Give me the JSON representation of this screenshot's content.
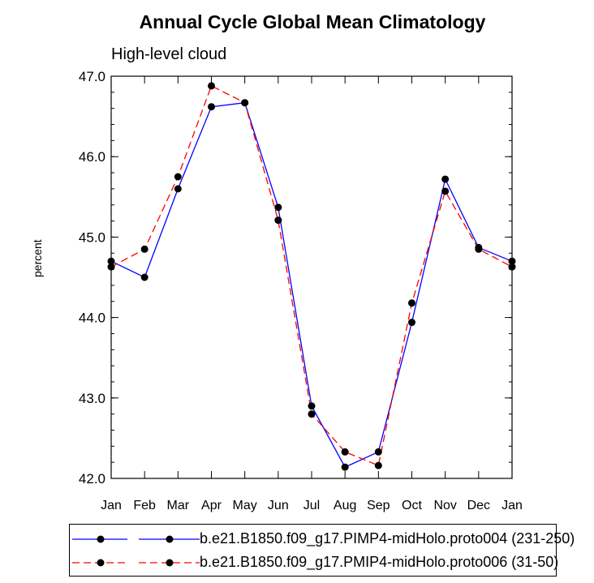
{
  "chart_data": {
    "type": "line",
    "title": "Annual Cycle Global Mean Climatology",
    "subtitle": "High-level cloud",
    "xlabel": "",
    "ylabel": "percent",
    "categories": [
      "Jan",
      "Feb",
      "Mar",
      "Apr",
      "May",
      "Jun",
      "Jul",
      "Aug",
      "Sep",
      "Oct",
      "Nov",
      "Dec",
      "Jan"
    ],
    "ylim": [
      42.0,
      47.0
    ],
    "yticks": [
      "42.0",
      "43.0",
      "44.0",
      "45.0",
      "46.0",
      "47.0"
    ],
    "grid": false,
    "legend_position": "bottom",
    "series": [
      {
        "name": "b.e21.B1850.f09_g17.PIMP4-midHolo.proto004 (231-250)",
        "color": "#0000ff",
        "dash": "solid",
        "values": [
          44.7,
          44.5,
          45.6,
          46.62,
          46.67,
          45.37,
          42.9,
          42.14,
          42.33,
          43.94,
          45.72,
          44.87,
          44.7
        ]
      },
      {
        "name": "b.e21.B1850.f09_g17.PMIP4-midHolo.proto006 (31-50)",
        "color": "#ff0000",
        "dash": "dashed",
        "values": [
          44.63,
          44.85,
          45.75,
          46.88,
          46.67,
          45.21,
          42.8,
          42.33,
          42.16,
          44.18,
          45.57,
          44.85,
          44.63
        ]
      }
    ]
  }
}
